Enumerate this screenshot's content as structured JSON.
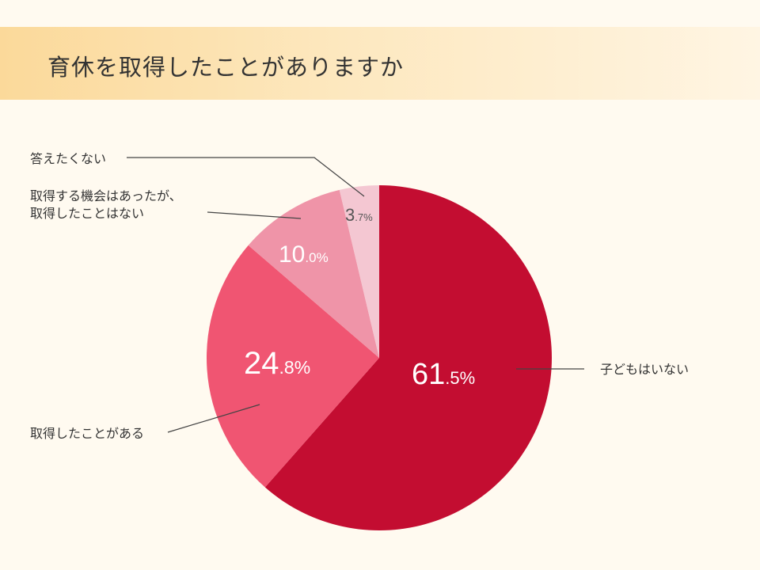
{
  "title": "育休を取得したことがありますか",
  "colors": {
    "background": "#fffaf0",
    "title_band": "#fbd99a",
    "slice1": "#c30d31",
    "slice2": "#f05572",
    "slice3": "#ef94a8",
    "slice4": "#f4c7d2",
    "leader": "#444444"
  },
  "chart_data": {
    "type": "pie",
    "title": "育休を取得したことがありますか",
    "start": "12 o'clock",
    "direction": "clockwise",
    "slices": [
      {
        "label": "子どもはいない",
        "value": 61.5,
        "int": "61",
        "dec": ".5",
        "unit": "%"
      },
      {
        "label": "取得したことがある",
        "value": 24.8,
        "int": "24",
        "dec": ".8",
        "unit": "%"
      },
      {
        "label": "取得する機会はあったが、\n取得したことはない",
        "value": 10.0,
        "int": "10",
        "dec": ".0",
        "unit": "%"
      },
      {
        "label": "答えたくない",
        "value": 3.7,
        "int": "3",
        "dec": ".7",
        "unit": "%"
      }
    ]
  }
}
